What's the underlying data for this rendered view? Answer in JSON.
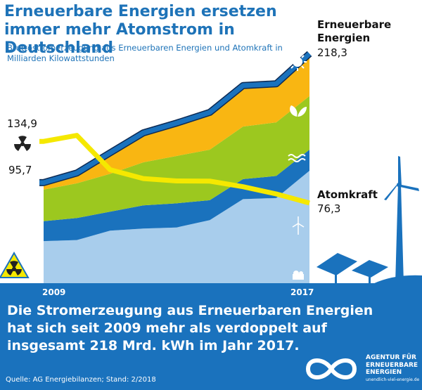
{
  "title": "Erneuerbare Energien ersetzen immer mehr Atomstrom in Deutschland",
  "subtitle": "Bruttostromerzeugung aus Erneuerbaren Energien und Atomkraft in Milliarden Kilowattstunden",
  "headline": "Die Stromerzeugung aus Erneuerbaren Energien hat sich seit 2009 mehr als verdoppelt auf insgesamt 218 Mrd. kWh im Jahr 2017.",
  "source": "Quelle: AG Energiebilanzen; Stand: 2/2018",
  "logo": {
    "line1": "AGENTUR FÜR",
    "line2": "ERNEUERBARE",
    "line3": "ENERGIEN",
    "url": "unendlich-viel-energie.de"
  },
  "labels": {
    "renewables_name_1": "Erneuerbare",
    "renewables_name_2": "Energien",
    "renewables_end": "218,3",
    "renewables_start": "95,7",
    "nuclear_name": "Atomkraft",
    "nuclear_end": "76,3",
    "nuclear_start": "134,9",
    "year_start": "2009",
    "year_end": "2017"
  },
  "colors": {
    "wind": "#a8cdec",
    "hydro": "#1a72bd",
    "biomass": "#9cc81f",
    "solar": "#f9b612",
    "renewables_line": "#1a72bd",
    "nuclear_line": "#f5e800",
    "panel": "#1a72bd"
  },
  "icons": [
    "radioactive-icon",
    "sun-icon",
    "leaf-icon",
    "water-wave-icon",
    "wind-turbine-icon",
    "biogas-plant-icon",
    "radioactive-sign-icon",
    "wind-turbine-silhouette-icon",
    "solar-panel-silhouette-icon",
    "infinity-logo-icon"
  ],
  "chart_data": {
    "type": "area",
    "x": [
      2009,
      2010,
      2011,
      2012,
      2013,
      2014,
      2015,
      2016,
      2017
    ],
    "series": [
      {
        "values": [
          40,
          41,
          50,
          52,
          53,
          60,
          80,
          81,
          107
        ]
      },
      {
        "values": [
          19,
          21,
          18,
          22,
          23,
          19,
          19,
          21,
          20
        ]
      },
      {
        "values": [
          30,
          33,
          36,
          41,
          45,
          48,
          50,
          51,
          51
        ]
      },
      {
        "values": [
          7,
          12,
          20,
          27,
          31,
          36,
          39,
          38,
          40
        ]
      },
      {
        "values": [
          95.7,
          104.8,
          124.0,
          143.0,
          152.3,
          162.5,
          188.0,
          189.7,
          218.3
        ]
      },
      {
        "name": "Atomkraft",
        "values": [
          134.9,
          140.6,
          108.0,
          99.5,
          97.3,
          97.1,
          91.8,
          84.9,
          76.3
        ]
      }
    ],
    "ylim": [
      0,
      240
    ]
  }
}
